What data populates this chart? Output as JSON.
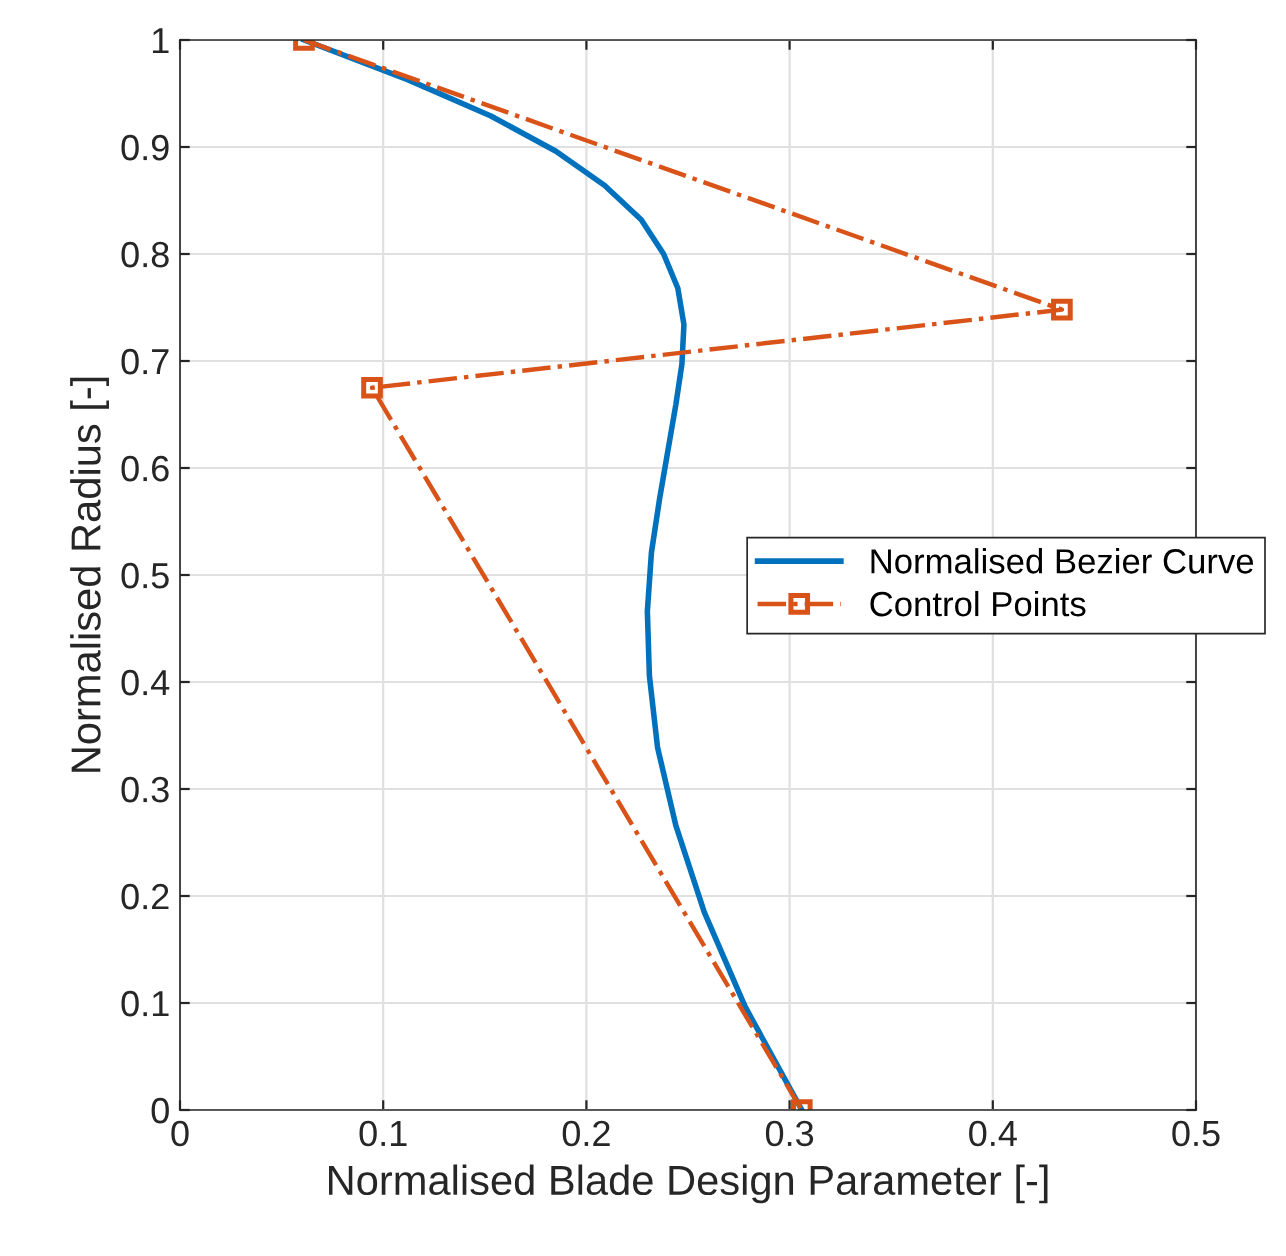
{
  "chart_data": {
    "type": "line",
    "xlabel": "Normalised Blade Design Parameter [-]",
    "ylabel": "Normalised Radius [-]",
    "xlim": [
      0,
      0.5
    ],
    "xticks": [
      0,
      0.1,
      0.2,
      0.3,
      0.4,
      0.5
    ],
    "ylim": [
      0,
      1
    ],
    "yticks": [
      0,
      0.1,
      0.2,
      0.3,
      0.4,
      0.5,
      0.6,
      0.7,
      0.8,
      0.9,
      1
    ],
    "grid": true,
    "legend": "right",
    "series": [
      {
        "name": "Normalised Bezier Curve",
        "color": "#0072bd",
        "marker": "none",
        "line_style": "solid",
        "x": [
          0.061,
          0.112,
          0.153,
          0.185,
          0.209,
          0.227,
          0.238,
          0.245,
          0.248,
          0.247,
          0.244,
          0.236,
          0.232,
          0.23,
          0.231,
          0.235,
          0.244,
          0.258,
          0.278,
          0.306
        ],
        "values": [
          1,
          0.963,
          0.929,
          0.896,
          0.864,
          0.832,
          0.8,
          0.768,
          0.734,
          0.697,
          0.659,
          0.571,
          0.521,
          0.466,
          0.406,
          0.339,
          0.266,
          0.185,
          0.097,
          0
        ]
      },
      {
        "name": "Control Points",
        "color": "#d95319",
        "marker": "square",
        "line_style": "dashdot",
        "x": [
          0.061,
          0.434,
          0.0945,
          0.306
        ],
        "values": [
          1,
          0.748,
          0.675,
          0
        ]
      }
    ]
  }
}
